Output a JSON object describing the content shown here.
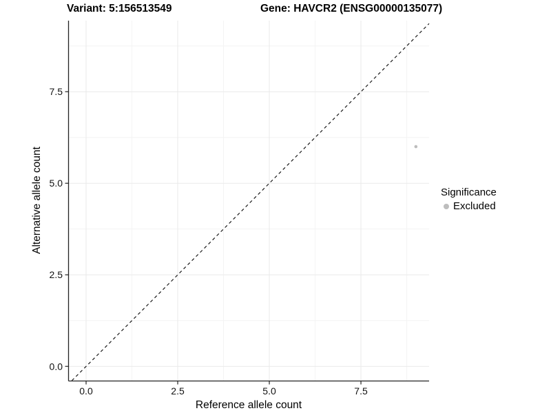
{
  "titles": {
    "variant": "Variant: 5:156513549",
    "gene": "Gene: HAVCR2 (ENSG00000135077)"
  },
  "chart_data": {
    "type": "scatter",
    "xlabel": "Reference allele count",
    "ylabel": "Alternative allele count",
    "x_ticks": [
      0.0,
      2.5,
      5.0,
      7.5
    ],
    "y_ticks": [
      0.0,
      2.5,
      5.0,
      7.5
    ],
    "x_tick_labels": [
      "0.0",
      "2.5",
      "5.0",
      "7.5"
    ],
    "y_tick_labels": [
      "0.0",
      "2.5",
      "5.0",
      "7.5"
    ],
    "x_minor_ticks": [
      1.25,
      3.75,
      6.25,
      8.75
    ],
    "y_minor_ticks": [
      1.25,
      3.75,
      6.25,
      8.75
    ],
    "xlim": [
      -0.47,
      9.36
    ],
    "ylim": [
      -0.39,
      9.44
    ],
    "grid": true,
    "identity_line": {
      "slope": 1,
      "intercept": 0,
      "style": "dashed"
    },
    "series": [
      {
        "name": "Excluded",
        "points": [
          {
            "x": 9,
            "y": 6
          }
        ],
        "color": "#bdbdbd"
      }
    ],
    "legend": {
      "title": "Significance",
      "position": "right",
      "items": [
        {
          "label": "Excluded",
          "color": "#bdbdbd"
        }
      ]
    }
  },
  "colors": {
    "point_excluded": "#bdbdbd",
    "grid_major": "#e9e9e9",
    "grid_minor": "#f4f4f4",
    "axis_line": "#222222",
    "identity_line": "#1a1a1a",
    "background": "#ffffff"
  }
}
